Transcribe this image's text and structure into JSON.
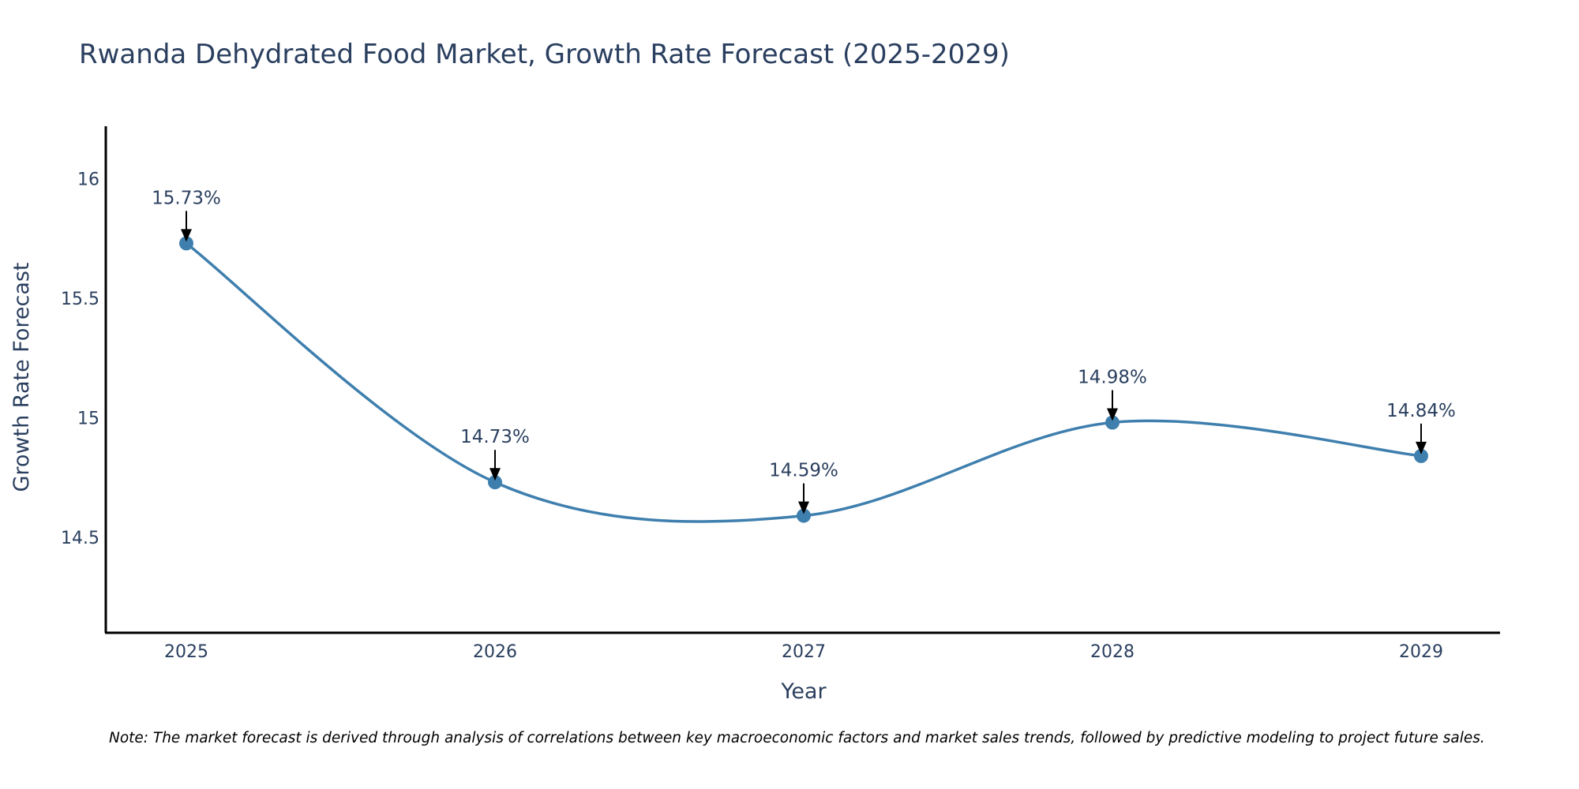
{
  "chart_data": {
    "type": "line",
    "title": "Rwanda Dehydrated Food Market, Growth Rate Forecast (2025-2029)",
    "xlabel": "Year",
    "ylabel": "Growth Rate Forecast",
    "x": [
      "2025",
      "2026",
      "2027",
      "2028",
      "2029"
    ],
    "values": [
      15.73,
      14.73,
      14.59,
      14.98,
      14.84
    ],
    "data_labels": [
      "15.73%",
      "14.73%",
      "14.59%",
      "14.98%",
      "14.84%"
    ],
    "yticks": [
      14.5,
      15,
      15.5,
      16
    ],
    "ytick_labels": [
      "14.5",
      "15",
      "15.5",
      "16"
    ],
    "ylim": [
      14.1,
      16.22
    ],
    "line_shape": "spline",
    "grid": false,
    "legend": "none",
    "colors": {
      "line": "#3f7fae",
      "marker": "#3f7fae",
      "text": "#2a3f5f",
      "axis": "#000000",
      "arrow": "#000000"
    }
  },
  "note": "Note: The market forecast is derived through analysis of correlations between key macroeconomic factors and market sales trends, followed by predictive modeling to project future sales."
}
